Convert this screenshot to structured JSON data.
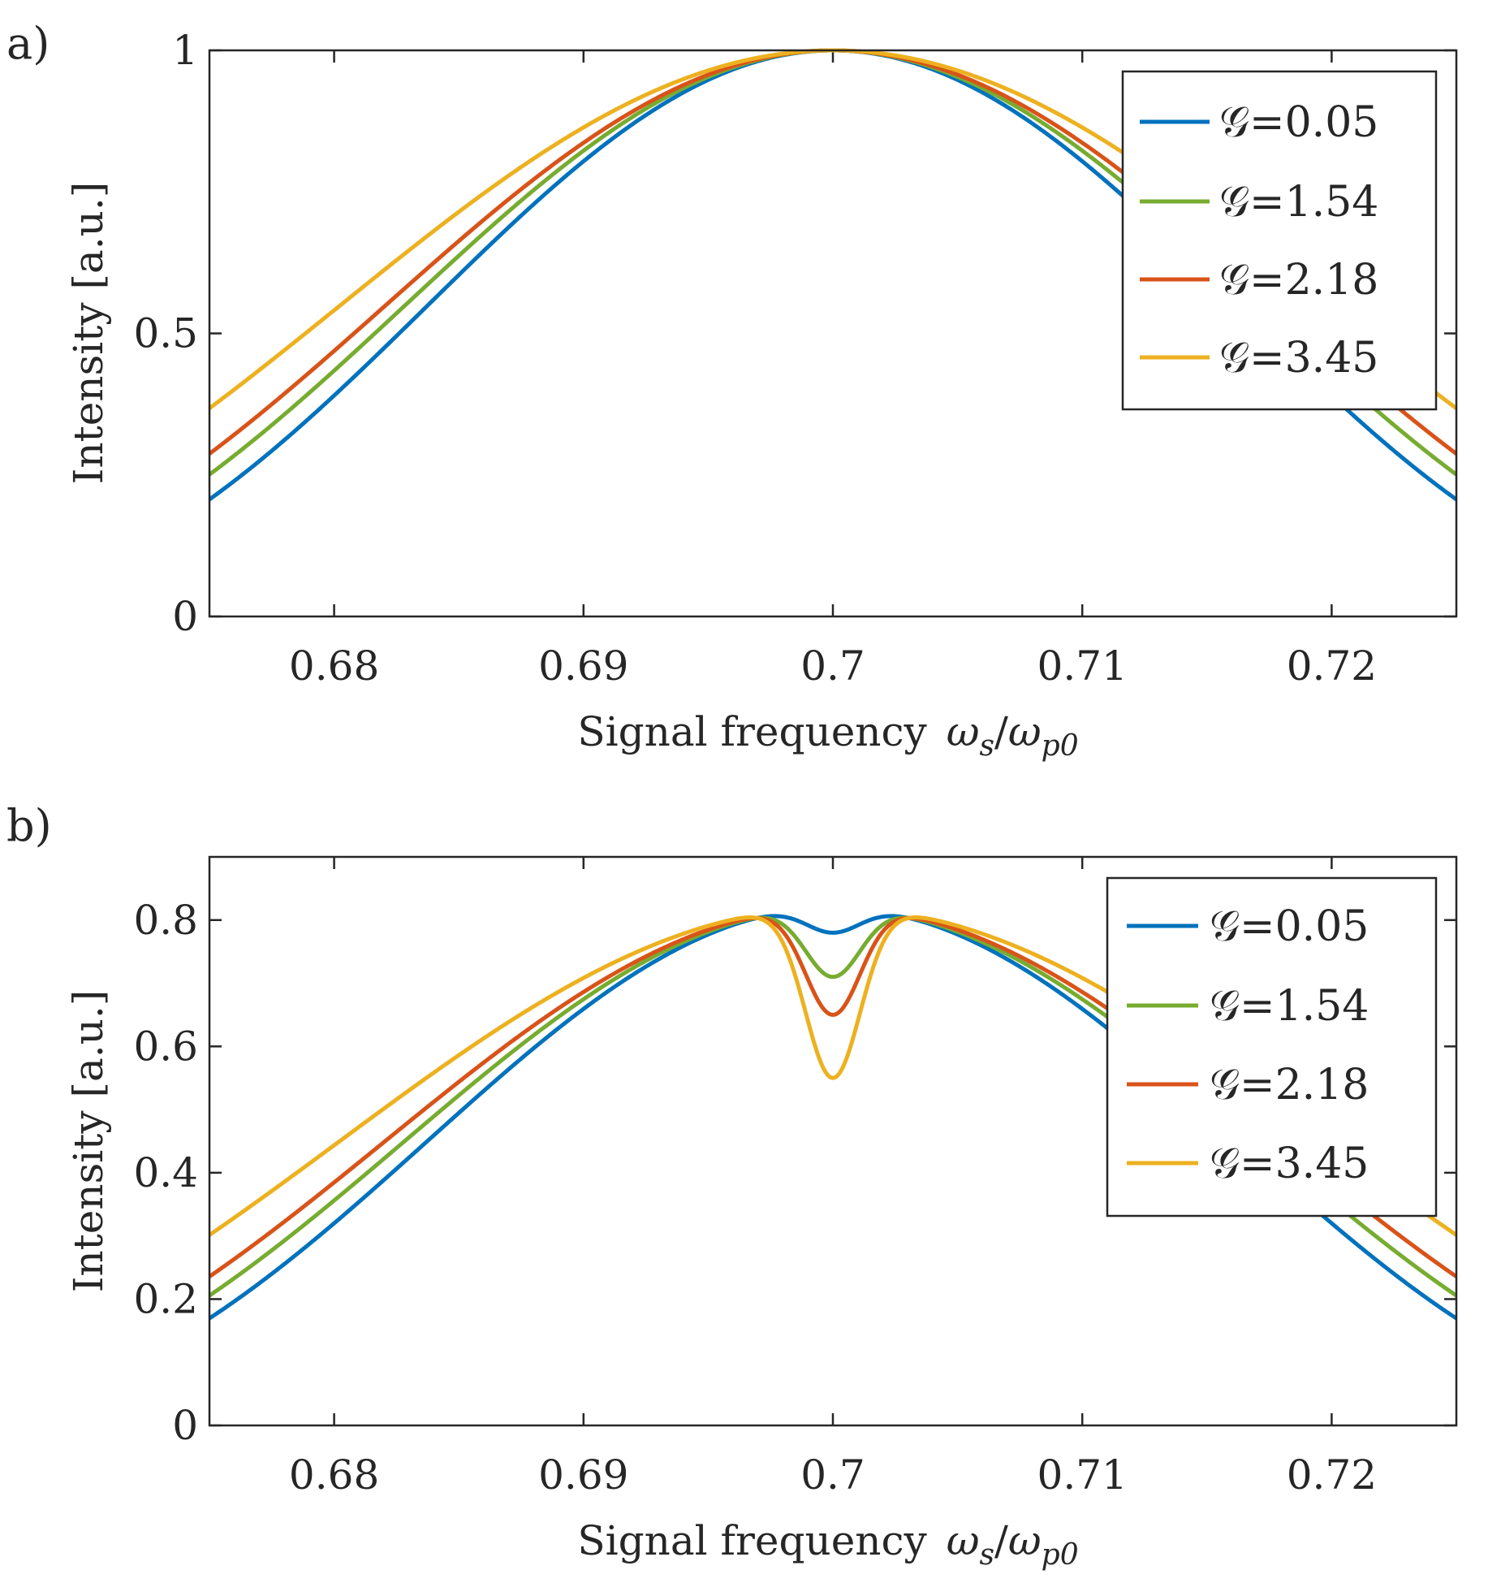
{
  "chart_data": [
    {
      "type": "line",
      "panel_label": "a)",
      "xlabel": "Signal frequency",
      "xlabel_math": {
        "main": "ω",
        "sub1": "s",
        "slash": "/",
        "main2": "ω",
        "sub2": "p0"
      },
      "ylabel": "Intensity [a.u.]",
      "xlim": [
        0.675,
        0.725
      ],
      "ylim": [
        0,
        1
      ],
      "xticks": [
        0.68,
        0.69,
        0.7,
        0.71,
        0.72
      ],
      "xtick_labels": [
        "0.68",
        "0.69",
        "0.7",
        "0.71",
        "0.72"
      ],
      "yticks": [
        0,
        0.5,
        1
      ],
      "ytick_labels": [
        "0",
        "0.5",
        "1"
      ],
      "legend_position": "top-right",
      "curve_model": {
        "center": 0.7,
        "peak": 1.0,
        "dip_depth": 0,
        "dip_halfwidth": 0
      },
      "series": [
        {
          "name": "𝒢=0.05",
          "color": "#0072BD",
          "scale": 0.0125
        },
        {
          "name": "𝒢=1.54",
          "color": "#77AC30",
          "scale": 0.0132
        },
        {
          "name": "𝒢=2.18",
          "color": "#D95319",
          "scale": 0.0138
        },
        {
          "name": "𝒢=3.45",
          "color": "#EDB120",
          "scale": 0.0152
        }
      ]
    },
    {
      "type": "line",
      "panel_label": "b)",
      "xlabel": "Signal frequency",
      "xlabel_math": {
        "main": "ω",
        "sub1": "s",
        "slash": "/",
        "main2": "ω",
        "sub2": "p0"
      },
      "ylabel": "Intensity [a.u.]",
      "xlim": [
        0.675,
        0.725
      ],
      "ylim": [
        0,
        0.9
      ],
      "xticks": [
        0.68,
        0.69,
        0.7,
        0.71,
        0.72
      ],
      "xtick_labels": [
        "0.68",
        "0.69",
        "0.7",
        "0.71",
        "0.72"
      ],
      "yticks": [
        0,
        0.2,
        0.4,
        0.6,
        0.8
      ],
      "ytick_labels": [
        "0",
        "0.2",
        "0.4",
        "0.6",
        "0.8"
      ],
      "legend_position": "top-right",
      "curve_model": {
        "center": 0.7,
        "peak": 0.82,
        "dip_halfwidth": 0.0011
      },
      "series": [
        {
          "name": "𝒢=0.05",
          "color": "#0072BD",
          "scale": 0.0125,
          "dip_depth": 0.04
        },
        {
          "name": "𝒢=1.54",
          "color": "#77AC30",
          "scale": 0.0132,
          "dip_depth": 0.11
        },
        {
          "name": "𝒢=2.18",
          "color": "#D95319",
          "scale": 0.0138,
          "dip_depth": 0.17
        },
        {
          "name": "𝒢=3.45",
          "color": "#EDB120",
          "scale": 0.0152,
          "dip_depth": 0.27
        }
      ]
    }
  ]
}
